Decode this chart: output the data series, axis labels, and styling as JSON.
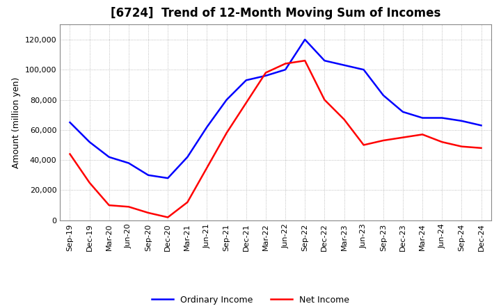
{
  "title": "[6724]  Trend of 12-Month Moving Sum of Incomes",
  "ylabel": "Amount (million yen)",
  "ylim": [
    0,
    130000
  ],
  "yticks": [
    0,
    20000,
    40000,
    60000,
    80000,
    100000,
    120000
  ],
  "x_labels": [
    "Sep-19",
    "Dec-19",
    "Mar-20",
    "Jun-20",
    "Sep-20",
    "Dec-20",
    "Mar-21",
    "Jun-21",
    "Sep-21",
    "Dec-21",
    "Mar-22",
    "Jun-22",
    "Sep-22",
    "Dec-22",
    "Mar-23",
    "Jun-23",
    "Sep-23",
    "Dec-23",
    "Mar-24",
    "Jun-24",
    "Sep-24",
    "Dec-24"
  ],
  "ordinary_income": [
    65000,
    52000,
    42000,
    38000,
    30000,
    28000,
    42000,
    62000,
    80000,
    93000,
    96000,
    100000,
    120000,
    106000,
    103000,
    100000,
    83000,
    72000,
    68000,
    68000,
    66000,
    63000
  ],
  "net_income": [
    44000,
    25000,
    10000,
    9000,
    5000,
    2000,
    12000,
    35000,
    58000,
    78000,
    98000,
    104000,
    106000,
    80000,
    67000,
    50000,
    53000,
    55000,
    57000,
    52000,
    49000,
    48000
  ],
  "ordinary_color": "#0000ff",
  "net_color": "#ff0000",
  "line_width": 1.8,
  "background_color": "#ffffff",
  "grid_color": "#aaaaaa",
  "legend_ordinary": "Ordinary Income",
  "legend_net": "Net Income",
  "title_fontsize": 12,
  "label_fontsize": 9,
  "tick_fontsize": 8
}
